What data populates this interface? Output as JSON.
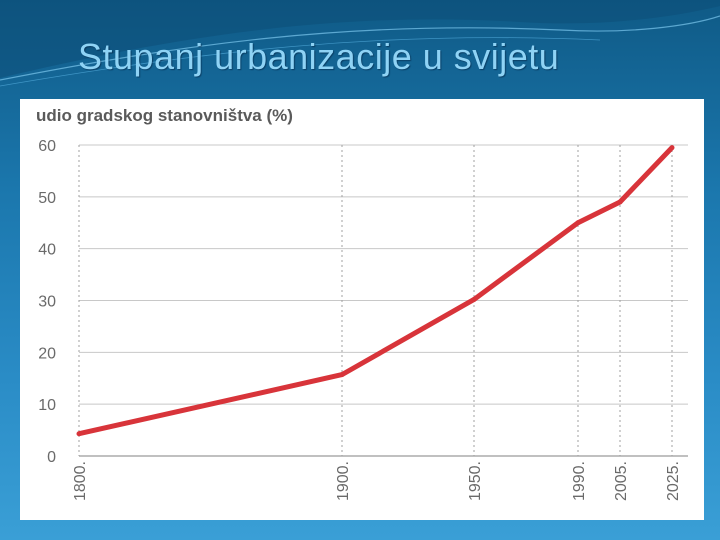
{
  "slide": {
    "title": "Stupanj urbanizacije u svijetu"
  },
  "colors": {
    "background_top": "#0f5a86",
    "background_bottom": "#3a9fd6",
    "title": "#8fd3f5",
    "line": "#d8343a",
    "grid": "#c8c8c8",
    "tick_text": "#6a6a6a"
  },
  "chart_data": {
    "type": "line",
    "title": "",
    "xlabel": "",
    "ylabel": "udio gradskog stanovništva (%)",
    "x_tick_labels": [
      "1800.",
      "1900.",
      "1950.",
      "1990.",
      "2005.",
      "2025."
    ],
    "x": [
      1800,
      1900,
      1950,
      1990,
      2005,
      2025
    ],
    "y_ticks": [
      0,
      10,
      20,
      30,
      40,
      50,
      60
    ],
    "ylim": [
      0,
      60
    ],
    "series": [
      {
        "x": [
          1800,
          1900,
          1950,
          1990,
          2005,
          2025
        ],
        "values": [
          4.3,
          15.7,
          30.2,
          45.0,
          49.0,
          59.5
        ]
      }
    ],
    "grid": true,
    "legend": "none"
  }
}
